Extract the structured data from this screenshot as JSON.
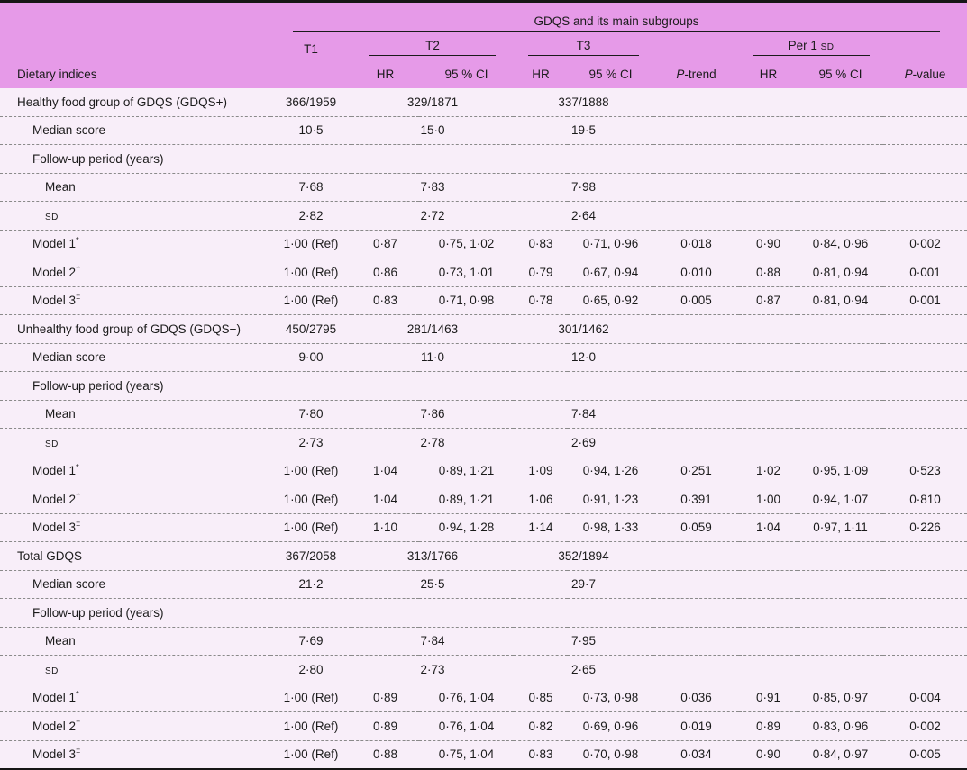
{
  "table": {
    "spanner": "GDQS and its main subgroups",
    "header": {
      "col_label": "Dietary indices",
      "t1": "T1",
      "t2": "T2",
      "t3": "T3",
      "per1_prefix": "Per 1 ",
      "sd_small": "SD",
      "hr": "HR",
      "ci": "95 % CI",
      "p_italic": "P",
      "trend_suffix": "-trend",
      "value_suffix": "-value"
    },
    "colors": {
      "header_background": "#e69ae8",
      "body_background": "#f8eef9",
      "rule_black": "#161616",
      "row_divider": "#8a8a8a",
      "text": "#1b1b1b"
    },
    "rows": [
      {
        "label": "Healthy food group of GDQS (GDQS+)",
        "indent": 0,
        "sup": "",
        "sc": false,
        "type": "span3",
        "cells": [
          "366/1959",
          "329/1871",
          "337/1888"
        ]
      },
      {
        "label": "Median score",
        "indent": 1,
        "sup": "",
        "sc": false,
        "type": "span3",
        "cells": [
          "10·5",
          "15·0",
          "19·5"
        ]
      },
      {
        "label": "Follow-up period (years)",
        "indent": 1,
        "sup": "",
        "sc": false,
        "type": "label",
        "cells": []
      },
      {
        "label": "Mean",
        "indent": 2,
        "sup": "",
        "sc": false,
        "type": "span3",
        "cells": [
          "7·68",
          "7·83",
          "7·98"
        ]
      },
      {
        "label": "SD",
        "indent": 2,
        "sup": "",
        "sc": true,
        "type": "span3",
        "cells": [
          "2·82",
          "2·72",
          "2·64"
        ]
      },
      {
        "label": "Model 1",
        "indent": 1,
        "sup": "*",
        "sc": false,
        "type": "full",
        "cells": [
          "1·00 (Ref)",
          "0·87",
          "0·75, 1·02",
          "0·83",
          "0·71, 0·96",
          "0·018",
          "0·90",
          "0·84, 0·96",
          "0·002"
        ]
      },
      {
        "label": "Model 2",
        "indent": 1,
        "sup": "†",
        "sc": false,
        "type": "full",
        "cells": [
          "1·00 (Ref)",
          "0·86",
          "0·73, 1·01",
          "0·79",
          "0·67, 0·94",
          "0·010",
          "0·88",
          "0·81, 0·94",
          "0·001"
        ]
      },
      {
        "label": "Model 3",
        "indent": 1,
        "sup": "‡",
        "sc": false,
        "type": "full",
        "cells": [
          "1·00 (Ref)",
          "0·83",
          "0·71, 0·98",
          "0·78",
          "0·65, 0·92",
          "0·005",
          "0·87",
          "0·81, 0·94",
          "0·001"
        ]
      },
      {
        "label": "Unhealthy food group of GDQS (GDQS−)",
        "indent": 0,
        "sup": "",
        "sc": false,
        "type": "span3",
        "cells": [
          "450/2795",
          "281/1463",
          "301/1462"
        ]
      },
      {
        "label": "Median score",
        "indent": 1,
        "sup": "",
        "sc": false,
        "type": "span3",
        "cells": [
          "9·00",
          "11·0",
          "12·0"
        ]
      },
      {
        "label": "Follow-up period (years)",
        "indent": 1,
        "sup": "",
        "sc": false,
        "type": "label",
        "cells": []
      },
      {
        "label": "Mean",
        "indent": 2,
        "sup": "",
        "sc": false,
        "type": "span3",
        "cells": [
          "7·80",
          "7·86",
          "7·84"
        ]
      },
      {
        "label": "SD",
        "indent": 2,
        "sup": "",
        "sc": true,
        "type": "span3",
        "cells": [
          "2·73",
          "2·78",
          "2·69"
        ]
      },
      {
        "label": "Model 1",
        "indent": 1,
        "sup": "*",
        "sc": false,
        "type": "full",
        "cells": [
          "1·00 (Ref)",
          "1·04",
          "0·89, 1·21",
          "1·09",
          "0·94, 1·26",
          "0·251",
          "1·02",
          "0·95, 1·09",
          "0·523"
        ]
      },
      {
        "label": "Model 2",
        "indent": 1,
        "sup": "†",
        "sc": false,
        "type": "full",
        "cells": [
          "1·00 (Ref)",
          "1·04",
          "0·89, 1·21",
          "1·06",
          "0·91, 1·23",
          "0·391",
          "1·00",
          "0·94, 1·07",
          "0·810"
        ]
      },
      {
        "label": "Model 3",
        "indent": 1,
        "sup": "‡",
        "sc": false,
        "type": "full",
        "cells": [
          "1·00 (Ref)",
          "1·10",
          "0·94, 1·28",
          "1·14",
          "0·98, 1·33",
          "0·059",
          "1·04",
          "0·97, 1·11",
          "0·226"
        ]
      },
      {
        "label": "Total GDQS",
        "indent": 0,
        "sup": "",
        "sc": false,
        "type": "span3",
        "cells": [
          "367/2058",
          "313/1766",
          "352/1894"
        ]
      },
      {
        "label": "Median score",
        "indent": 1,
        "sup": "",
        "sc": false,
        "type": "span3",
        "cells": [
          "21·2",
          "25·5",
          "29·7"
        ]
      },
      {
        "label": "Follow-up period (years)",
        "indent": 1,
        "sup": "",
        "sc": false,
        "type": "label",
        "cells": []
      },
      {
        "label": "Mean",
        "indent": 2,
        "sup": "",
        "sc": false,
        "type": "span3",
        "cells": [
          "7·69",
          "7·84",
          "7·95"
        ]
      },
      {
        "label": "SD",
        "indent": 2,
        "sup": "",
        "sc": true,
        "type": "span3",
        "cells": [
          "2·80",
          "2·73",
          "2·65"
        ]
      },
      {
        "label": "Model 1",
        "indent": 1,
        "sup": "*",
        "sc": false,
        "type": "full",
        "cells": [
          "1·00 (Ref)",
          "0·89",
          "0·76, 1·04",
          "0·85",
          "0·73, 0·98",
          "0·036",
          "0·91",
          "0·85, 0·97",
          "0·004"
        ]
      },
      {
        "label": "Model 2",
        "indent": 1,
        "sup": "†",
        "sc": false,
        "type": "full",
        "cells": [
          "1·00 (Ref)",
          "0·89",
          "0·76, 1·04",
          "0·82",
          "0·69, 0·96",
          "0·019",
          "0·89",
          "0·83, 0·96",
          "0·002"
        ]
      },
      {
        "label": "Model 3",
        "indent": 1,
        "sup": "‡",
        "sc": false,
        "type": "full",
        "cells": [
          "1·00 (Ref)",
          "0·88",
          "0·75, 1·04",
          "0·83",
          "0·70, 0·98",
          "0·034",
          "0·90",
          "0·84, 0·97",
          "0·005"
        ]
      }
    ]
  }
}
